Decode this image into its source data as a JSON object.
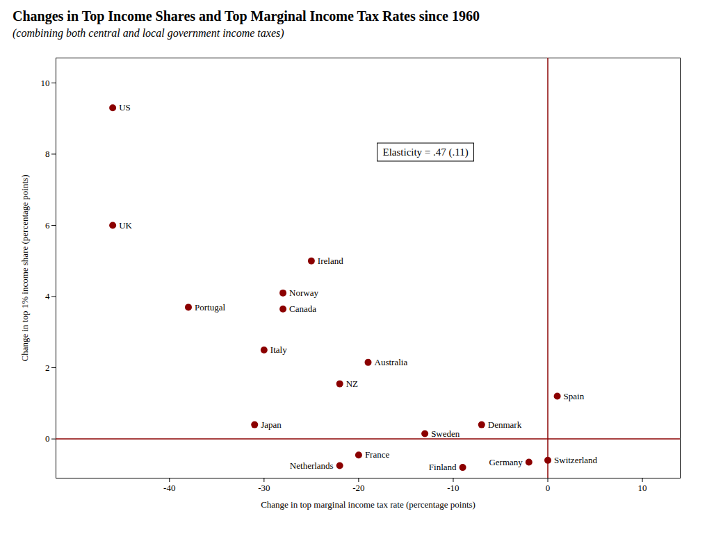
{
  "chart_data": {
    "type": "scatter",
    "title": "Changes in Top Income Shares and Top Marginal Income Tax Rates since 1960",
    "subtitle": "(combining both central and local government income taxes)",
    "xlabel": "Change in top marginal income tax rate (percentage points)",
    "ylabel": "Change in top 1% income share (percentage points)",
    "xlim": [
      -52,
      14
    ],
    "ylim": [
      -1.1,
      10.7
    ],
    "xticks": [
      -40,
      -30,
      -20,
      -10,
      0,
      10
    ],
    "yticks": [
      0,
      2,
      4,
      6,
      8,
      10
    ],
    "labels": [
      "US",
      "UK",
      "Ireland",
      "Norway",
      "Canada",
      "Portugal",
      "Italy",
      "Australia",
      "NZ",
      "Japan",
      "Sweden",
      "Denmark",
      "Spain",
      "France",
      "Germany",
      "Finland",
      "Netherlands",
      "Switzerland"
    ],
    "x": [
      -46,
      -46,
      -25,
      -28,
      -28,
      -38,
      -30,
      -19,
      -22,
      -31,
      -13,
      -7,
      1,
      -20,
      -2,
      -9,
      -22,
      0
    ],
    "values": [
      9.3,
      6.0,
      5.0,
      4.1,
      3.65,
      3.7,
      2.5,
      2.15,
      1.55,
      0.4,
      0.15,
      0.4,
      1.2,
      -0.45,
      -0.65,
      -0.8,
      -0.75,
      -0.6
    ],
    "color": "#8B0000",
    "hline_y": 0,
    "vline_x": 0,
    "annotation": "Elasticity = .47 (.11)",
    "grid": false
  }
}
